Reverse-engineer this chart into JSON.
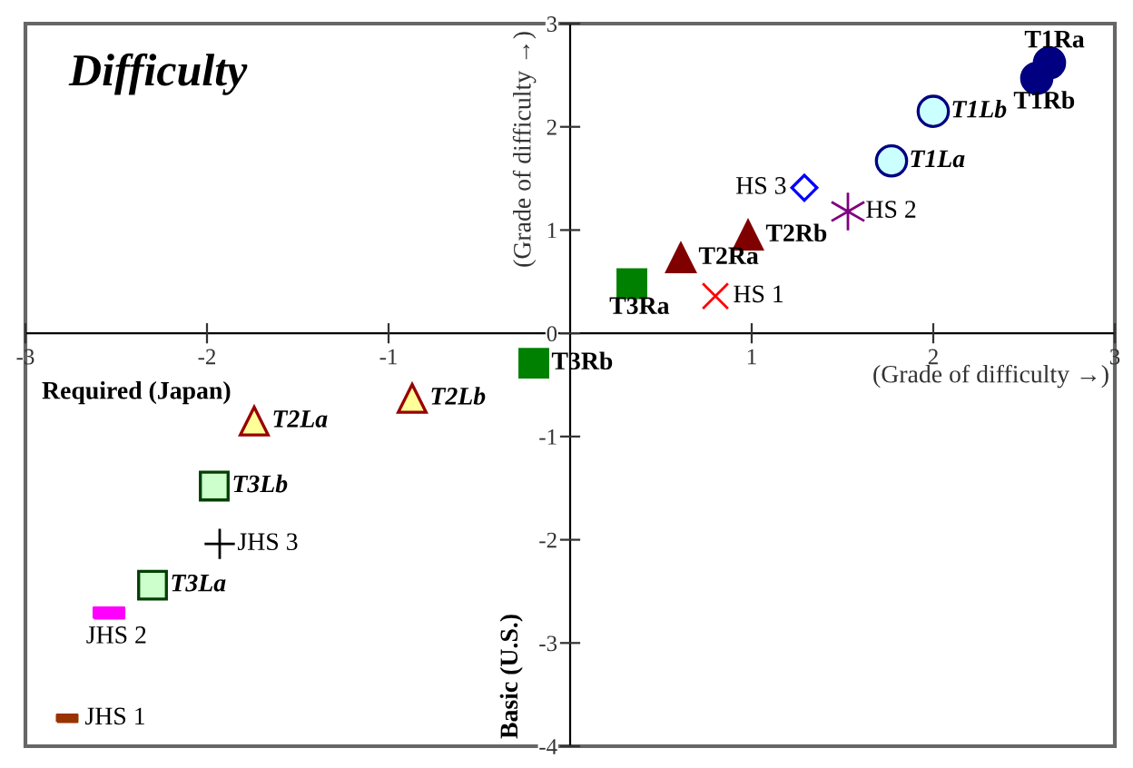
{
  "chart_data": {
    "type": "scatter",
    "title": "Difficulty",
    "xlabel": "(Grade of difficulty →)",
    "ylabel": "(Grade of difficulty →)",
    "annotations": [
      "Required (Japan)",
      "Basic (U.S.)"
    ],
    "xlim": [
      -3,
      3
    ],
    "ylim": [
      -4,
      3
    ],
    "xticks": [
      -3,
      -2,
      -1,
      1,
      2,
      3
    ],
    "yticks": [
      -4,
      -3,
      -2,
      -1,
      0,
      1,
      2,
      3
    ],
    "grid": false,
    "series": [
      {
        "name": "T1Ra",
        "color": "#000080",
        "marker": "circle",
        "x": [
          2.64
        ],
        "values": [
          2.62
        ]
      },
      {
        "name": "T1Rb",
        "color": "#000080",
        "marker": "circle",
        "x": [
          2.57
        ],
        "values": [
          2.47
        ]
      },
      {
        "name": "T1Lb",
        "color": "#ccffff",
        "marker": "circle",
        "x": [
          2.0
        ],
        "values": [
          2.15
        ]
      },
      {
        "name": "T1La",
        "color": "#ccffff",
        "marker": "circle",
        "x": [
          1.77
        ],
        "values": [
          1.67
        ]
      },
      {
        "name": "HS 3",
        "color": "#0000ff",
        "marker": "diamond",
        "x": [
          1.29
        ],
        "values": [
          1.41
        ]
      },
      {
        "name": "HS 2",
        "color": "#800080",
        "marker": "cross",
        "x": [
          1.53
        ],
        "values": [
          1.18
        ]
      },
      {
        "name": "T2Rb",
        "color": "#800000",
        "marker": "triangle",
        "x": [
          0.98
        ],
        "values": [
          0.95
        ]
      },
      {
        "name": "T2Ra",
        "color": "#800000",
        "marker": "triangle",
        "x": [
          0.61
        ],
        "values": [
          0.73
        ]
      },
      {
        "name": "HS 1",
        "color": "#ff0000",
        "marker": "cross",
        "x": [
          0.8
        ],
        "values": [
          0.36
        ]
      },
      {
        "name": "T3Ra",
        "color": "#008000",
        "marker": "square",
        "x": [
          0.34
        ],
        "values": [
          0.48
        ]
      },
      {
        "name": "T3Rb",
        "color": "#008000",
        "marker": "square",
        "x": [
          -0.2
        ],
        "values": [
          -0.29
        ]
      },
      {
        "name": "T2Lb",
        "color": "#ffff99",
        "marker": "triangle",
        "x": [
          -0.87
        ],
        "values": [
          -0.63
        ]
      },
      {
        "name": "T2La",
        "color": "#ffff99",
        "marker": "triangle",
        "x": [
          -1.74
        ],
        "values": [
          -0.85
        ]
      },
      {
        "name": "T3Lb",
        "color": "#ccffcc",
        "marker": "square",
        "x": [
          -1.96
        ],
        "values": [
          -1.48
        ]
      },
      {
        "name": "JHS 3",
        "color": "#000000",
        "marker": "cross",
        "x": [
          -1.93
        ],
        "values": [
          -2.04
        ]
      },
      {
        "name": "T3La",
        "color": "#ccffcc",
        "marker": "square",
        "x": [
          -2.3
        ],
        "values": [
          -2.44
        ]
      },
      {
        "name": "JHS 2",
        "color": "#ff00ff",
        "marker": "square",
        "x": [
          -2.54
        ],
        "values": [
          -2.71
        ]
      },
      {
        "name": "JHS 1",
        "color": "#993300",
        "marker": "square",
        "x": [
          -2.77
        ],
        "values": [
          -3.73
        ]
      }
    ]
  }
}
